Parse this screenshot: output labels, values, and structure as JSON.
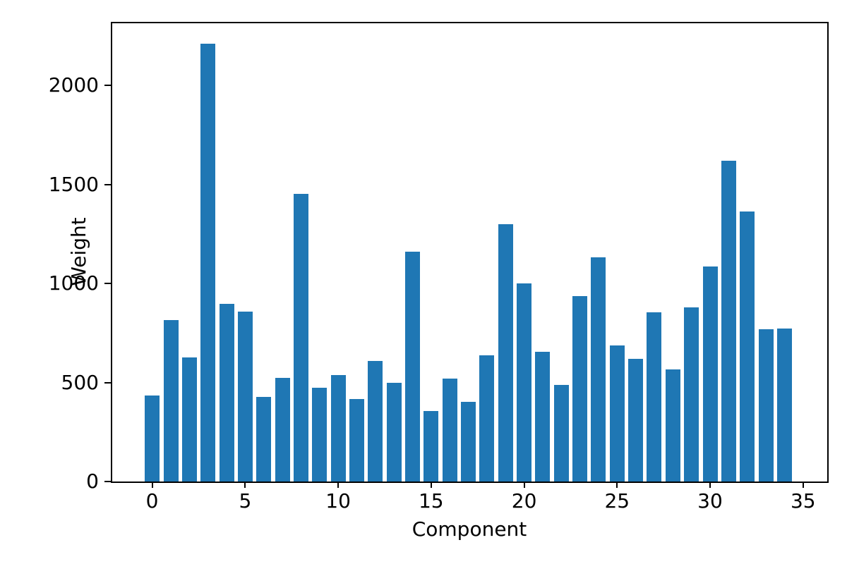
{
  "chart_data": {
    "type": "bar",
    "title": "",
    "xlabel": "Component",
    "ylabel": "Weight",
    "x": [
      0,
      1,
      2,
      3,
      4,
      5,
      6,
      7,
      8,
      9,
      10,
      11,
      12,
      13,
      14,
      15,
      16,
      17,
      18,
      19,
      20,
      21,
      22,
      23,
      24,
      25,
      26,
      27,
      28,
      29,
      30,
      31,
      32,
      33,
      34
    ],
    "values": [
      434,
      816,
      626,
      2210,
      896,
      857,
      427,
      525,
      1451,
      472,
      536,
      416,
      610,
      499,
      1160,
      357,
      521,
      404,
      637,
      1300,
      1001,
      656,
      488,
      936,
      1132,
      688,
      621,
      854,
      567,
      879,
      1087,
      1621,
      1364,
      768,
      771
    ],
    "xticks": [
      0,
      5,
      10,
      15,
      20,
      25,
      30,
      35
    ],
    "yticks": [
      0,
      500,
      1000,
      1500,
      2000
    ],
    "xlim": [
      -2.15,
      36.3
    ],
    "ylim": [
      0,
      2313
    ],
    "bar_width": 0.8,
    "bar_color": "#1f77b4",
    "axis_color": "#000000",
    "text_color": "#000000",
    "background": "#ffffff",
    "grid": false,
    "legend": null
  }
}
